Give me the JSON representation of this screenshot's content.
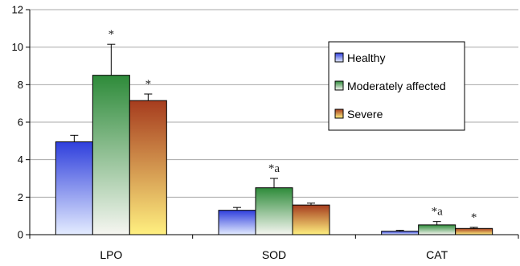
{
  "chart_data": {
    "type": "bar",
    "title": "",
    "xlabel": "",
    "ylabel": "",
    "ylim": [
      0,
      12
    ],
    "yticks": [
      0,
      2,
      4,
      6,
      8,
      10,
      12
    ],
    "grid": true,
    "legend_position": "right",
    "categories": [
      "LPO",
      "SOD",
      "CAT"
    ],
    "series": [
      {
        "name": "Healthy",
        "values": [
          4.95,
          1.3,
          0.18
        ],
        "errors": [
          0.35,
          0.15,
          0.05
        ],
        "color": "#2f3fdc"
      },
      {
        "name": "Moderately affected",
        "values": [
          8.5,
          2.5,
          0.52
        ],
        "errors": [
          1.65,
          0.5,
          0.18
        ],
        "color": "#2e8b3a"
      },
      {
        "name": "Severe",
        "values": [
          7.15,
          1.58,
          0.33
        ],
        "errors": [
          0.35,
          0.1,
          0.06
        ],
        "color": "#a63c1e"
      }
    ],
    "annotations": [
      {
        "category": "LPO",
        "series": "Moderately affected",
        "text": "*"
      },
      {
        "category": "LPO",
        "series": "Severe",
        "text": "*"
      },
      {
        "category": "SOD",
        "series": "Moderately affected",
        "text": "*a"
      },
      {
        "category": "CAT",
        "series": "Moderately affected",
        "text": "*a"
      },
      {
        "category": "CAT",
        "series": "Severe",
        "text": "*"
      }
    ]
  }
}
